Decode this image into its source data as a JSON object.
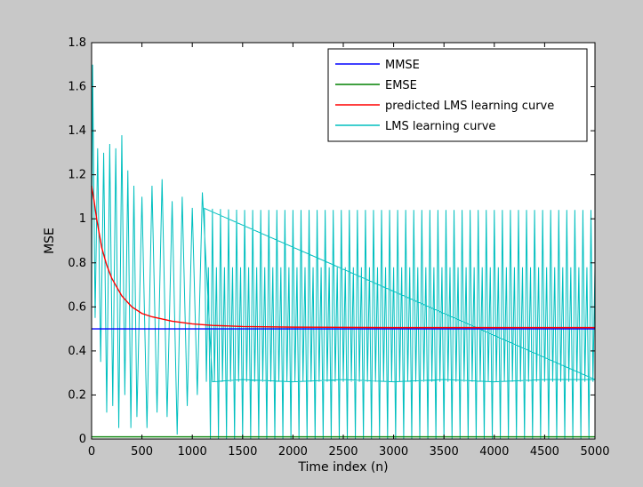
{
  "colors": {
    "figure_background": "#c8c8c8",
    "axes_background": "#ffffff"
  },
  "chart_data": {
    "type": "line",
    "xlabel": "Time index (n)",
    "ylabel": "MSE",
    "xlim": [
      0,
      5000
    ],
    "ylim": [
      0,
      1.8
    ],
    "xticks": [
      0,
      500,
      1000,
      1500,
      2000,
      2500,
      3000,
      3500,
      4000,
      4500,
      5000
    ],
    "yticks": [
      0,
      0.2,
      0.4,
      0.6,
      0.8,
      1,
      1.2,
      1.4,
      1.6,
      1.8
    ],
    "xtick_labels": [
      "0",
      "500",
      "1000",
      "1500",
      "2000",
      "2500",
      "3000",
      "3500",
      "4000",
      "4500",
      "5000"
    ],
    "ytick_labels": [
      "0",
      "0.2",
      "0.4",
      "0.6",
      "0.8",
      "1",
      "1.2",
      "1.4",
      "1.6",
      "1.8"
    ],
    "grid": false,
    "legend_position": "top-right",
    "series": [
      {
        "name": "MMSE",
        "color": "#0000ff",
        "x": [
          0,
          5000
        ],
        "y": [
          0.5,
          0.5
        ]
      },
      {
        "name": "EMSE",
        "color": "#008000",
        "x": [
          0,
          5000
        ],
        "y": [
          0.01,
          0.01
        ]
      },
      {
        "name": "predicted LMS learning curve",
        "color": "#ff0000",
        "x": [
          0,
          25,
          50,
          100,
          150,
          200,
          300,
          400,
          500,
          600,
          800,
          1000,
          1200,
          1500,
          2000,
          2500,
          3000,
          4000,
          5000
        ],
        "y": [
          1.15,
          1.08,
          1.0,
          0.87,
          0.79,
          0.73,
          0.65,
          0.6,
          0.57,
          0.555,
          0.535,
          0.523,
          0.516,
          0.511,
          0.508,
          0.507,
          0.506,
          0.506,
          0.506
        ]
      },
      {
        "name": "LMS learning curve",
        "color": "#00bfbf",
        "x": [
          0,
          10,
          35,
          60,
          90,
          120,
          150,
          180,
          210,
          240,
          270,
          300,
          330,
          360,
          390,
          420,
          450,
          500,
          550,
          600,
          650,
          700,
          750,
          800,
          850,
          900,
          950,
          1000,
          1050,
          1100,
          1200,
          1500,
          2000,
          2500,
          3000,
          3500,
          4000,
          4500,
          5000
        ],
        "y": [
          0.55,
          1.7,
          0.55,
          1.32,
          0.35,
          1.3,
          0.12,
          1.34,
          0.15,
          1.32,
          0.05,
          1.38,
          0.2,
          1.22,
          0.05,
          1.15,
          0.1,
          1.1,
          0.05,
          1.15,
          0.12,
          1.18,
          0.1,
          1.08,
          0.02,
          1.1,
          0.15,
          1.05,
          0.2,
          1.12,
          0.26,
          0.27,
          0.26,
          0.27,
          0.26,
          0.27,
          0.26,
          0.27,
          0.27
        ],
        "envelope_upper": {
          "x": [
            0,
            500,
            1000,
            1500,
            2000,
            2500,
            3000,
            3500,
            4000,
            4500,
            5000
          ],
          "y": [
            1.7,
            1.1,
            1.05,
            1.04,
            1.04,
            1.04,
            1.04,
            1.04,
            1.04,
            1.04,
            1.04
          ]
        },
        "envelope_lower": {
          "x": [
            0,
            500,
            1000,
            1500,
            2000,
            2500,
            3000,
            3500,
            4000,
            4500,
            5000
          ],
          "y": [
            0.0,
            0.0,
            0.0,
            0.0,
            0.0,
            0.0,
            0.0,
            0.0,
            0.0,
            0.0,
            0.0
          ]
        },
        "band_upper": {
          "x": [
            0,
            500,
            1000,
            1500,
            2000,
            2500,
            3000,
            3500,
            4000,
            4500,
            5000
          ],
          "y": [
            0.85,
            0.8,
            0.78,
            0.78,
            0.78,
            0.78,
            0.78,
            0.78,
            0.78,
            0.78,
            0.78
          ]
        },
        "band_lower": {
          "x": [
            0,
            500,
            1000,
            1500,
            2000,
            2500,
            3000,
            3500,
            4000,
            4500,
            5000
          ],
          "y": [
            0.2,
            0.25,
            0.26,
            0.26,
            0.26,
            0.26,
            0.26,
            0.26,
            0.26,
            0.26,
            0.26
          ]
        }
      }
    ]
  }
}
